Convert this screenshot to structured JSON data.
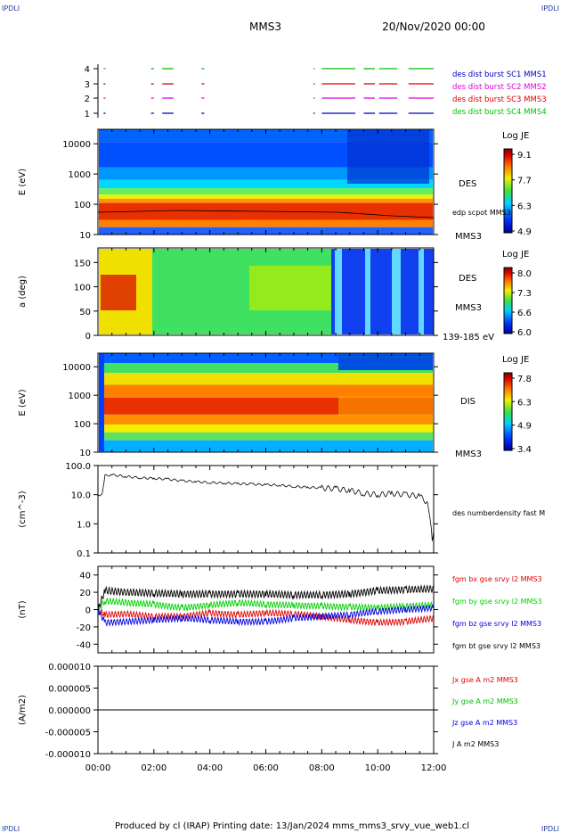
{
  "corner_labels": {
    "top_left": "IPDLI",
    "top_right": "IPDLI",
    "bottom_left": "IPDLI",
    "bottom_right": "IPDLI"
  },
  "header": {
    "spacecraft": "MMS3",
    "date_time": "20/Nov/2020 00:00"
  },
  "footer": {
    "text": "Produced by cl (IRAP)   Printing date: 13/Jan/2024   mms_mms3_srvy_vue_web1.cl"
  },
  "colors": {
    "mms1": "#0000c8",
    "mms2": "#e000e0",
    "mms3": "#e00000",
    "mms4": "#00c000",
    "bx": "#e00000",
    "by": "#00d000",
    "bz": "#0000e0",
    "bt": "#000000"
  },
  "chart_data": [
    {
      "type": "timeline",
      "name": "burst-availability",
      "yticks": [
        "1",
        "2",
        "3",
        "4"
      ],
      "x_range_hours": [
        0,
        12
      ],
      "intervals_hours": [
        [
          0.2,
          0.27
        ],
        [
          1.9,
          2.0
        ],
        [
          2.3,
          2.7
        ],
        [
          3.7,
          3.8
        ],
        [
          7.7,
          7.75
        ],
        [
          8.0,
          9.2
        ],
        [
          9.5,
          9.9
        ],
        [
          10.05,
          10.7
        ],
        [
          11.1,
          12.0
        ]
      ],
      "legend": [
        {
          "label": "des dist burst SC1 MMS1",
          "color": "#0000c8"
        },
        {
          "label": "des dist burst SC2 MMS2",
          "color": "#e000e0"
        },
        {
          "label": "des dist burst SC3 MMS3",
          "color": "#e00000"
        },
        {
          "label": "des dist burst SC4 MMS4",
          "color": "#00c000"
        }
      ]
    },
    {
      "type": "heatmap",
      "name": "des-energy-spectrogram",
      "ylabel": "E (eV)",
      "yscale": "log",
      "yticks": [
        "10",
        "100",
        "1000",
        "10000"
      ],
      "ylim": [
        10,
        30000
      ],
      "colorbar": {
        "title": "Log JE",
        "ticks": [
          "9.1",
          "7.7",
          "6.3",
          "4.9"
        ],
        "range": [
          4.9,
          9.1
        ]
      },
      "side_labels": [
        "DES",
        "edp scpot MMS3",
        "MMS3"
      ]
    },
    {
      "type": "heatmap",
      "name": "des-pitch-angle",
      "ylabel": "a (deg)",
      "yticks": [
        "0",
        "50",
        "100",
        "150"
      ],
      "ylim": [
        0,
        180
      ],
      "colorbar": {
        "title": "Log JE",
        "ticks": [
          "8.0",
          "7.3",
          "6.6",
          "6.0"
        ],
        "range": [
          6.0,
          8.0
        ]
      },
      "side_labels": [
        "DES",
        "MMS3",
        "139-185 eV"
      ]
    },
    {
      "type": "heatmap",
      "name": "dis-energy-spectrogram",
      "ylabel": "E (eV)",
      "yscale": "log",
      "yticks": [
        "10",
        "100",
        "1000",
        "10000"
      ],
      "ylim": [
        10,
        30000
      ],
      "colorbar": {
        "title": "Log JE",
        "ticks": [
          "7.8",
          "6.3",
          "4.9",
          "3.4"
        ],
        "range": [
          3.4,
          7.8
        ]
      },
      "side_labels": [
        "DIS",
        "MMS3"
      ]
    },
    {
      "type": "line",
      "name": "electron-density",
      "ylabel": "(cm^-3)",
      "yscale": "log",
      "yticks": [
        "0.1",
        "1.0",
        "10.0",
        "100.0"
      ],
      "ylim": [
        0.1,
        100
      ],
      "x_hours": [
        0.0,
        0.15,
        0.25,
        0.5,
        1.0,
        1.5,
        2.0,
        2.5,
        3.0,
        3.5,
        4.0,
        4.5,
        5.0,
        5.5,
        6.0,
        6.5,
        7.0,
        7.5,
        8.0,
        8.5,
        9.0,
        9.5,
        10.0,
        10.5,
        11.0,
        11.5,
        11.8,
        11.95,
        12.0
      ],
      "y": [
        10,
        10,
        45,
        48,
        42,
        38,
        36,
        34,
        30,
        28,
        26,
        25,
        24,
        23,
        22,
        21,
        19,
        18,
        17,
        16,
        14,
        11,
        10,
        11,
        10,
        9,
        5,
        0.3,
        0.6
      ],
      "legend": [
        {
          "label": "des numberdensity fast M",
          "color": "#000000"
        }
      ]
    },
    {
      "type": "line",
      "name": "magnetic-field",
      "ylabel": "(nT)",
      "yticks": [
        "-40",
        "-20",
        "0",
        "20",
        "40"
      ],
      "ylim": [
        -50,
        50
      ],
      "x_hours": [
        0.0,
        0.25,
        1.0,
        2.0,
        3.0,
        4.0,
        5.0,
        6.0,
        7.0,
        8.0,
        9.0,
        10.0,
        11.0,
        12.0
      ],
      "series": [
        {
          "name": "fgm bx gse srvy l2 MMS3",
          "color": "#e00000",
          "values": [
            0,
            -6,
            -5,
            -8,
            -8,
            -4,
            -6,
            -4,
            -5,
            -8,
            -12,
            -15,
            -14,
            -10
          ]
        },
        {
          "name": "fgm by gse srvy l2 MMS3",
          "color": "#00d000",
          "values": [
            0,
            10,
            8,
            6,
            2,
            5,
            8,
            6,
            5,
            4,
            3,
            2,
            4,
            5
          ]
        },
        {
          "name": "fgm bz gse srvy l2 MMS3",
          "color": "#0000e0",
          "values": [
            0,
            -15,
            -14,
            -12,
            -10,
            -12,
            -14,
            -14,
            -10,
            -8,
            -6,
            -2,
            0,
            2
          ]
        },
        {
          "name": "fgm bt gse srvy l2 MMS3",
          "color": "#000000",
          "values": [
            0,
            22,
            20,
            19,
            18,
            18,
            18,
            18,
            17,
            17,
            18,
            22,
            23,
            24
          ]
        }
      ]
    },
    {
      "type": "line",
      "name": "current-density",
      "ylabel": "(A/m2)",
      "yticks": [
        "-0.000010",
        "-0.000005",
        "0.000000",
        "0.000005",
        "0.000010"
      ],
      "ylim": [
        -1e-05,
        1e-05
      ],
      "x_hours": [
        0,
        12
      ],
      "series": [
        {
          "name": "Jx gse A m2 MMS3",
          "color": "#e00000",
          "values": [
            0,
            0
          ]
        },
        {
          "name": "Jy gse A m2 MMS3",
          "color": "#00c000",
          "values": [
            0,
            0
          ]
        },
        {
          "name": "Jz gse A m2 MMS3",
          "color": "#0000e0",
          "values": [
            0,
            0
          ]
        },
        {
          "name": "J A m2 MMS3",
          "color": "#000000",
          "values": [
            0,
            0
          ]
        }
      ],
      "xticks": [
        "00:00",
        "02:00",
        "04:00",
        "06:00",
        "08:00",
        "10:00",
        "12:00"
      ]
    }
  ]
}
